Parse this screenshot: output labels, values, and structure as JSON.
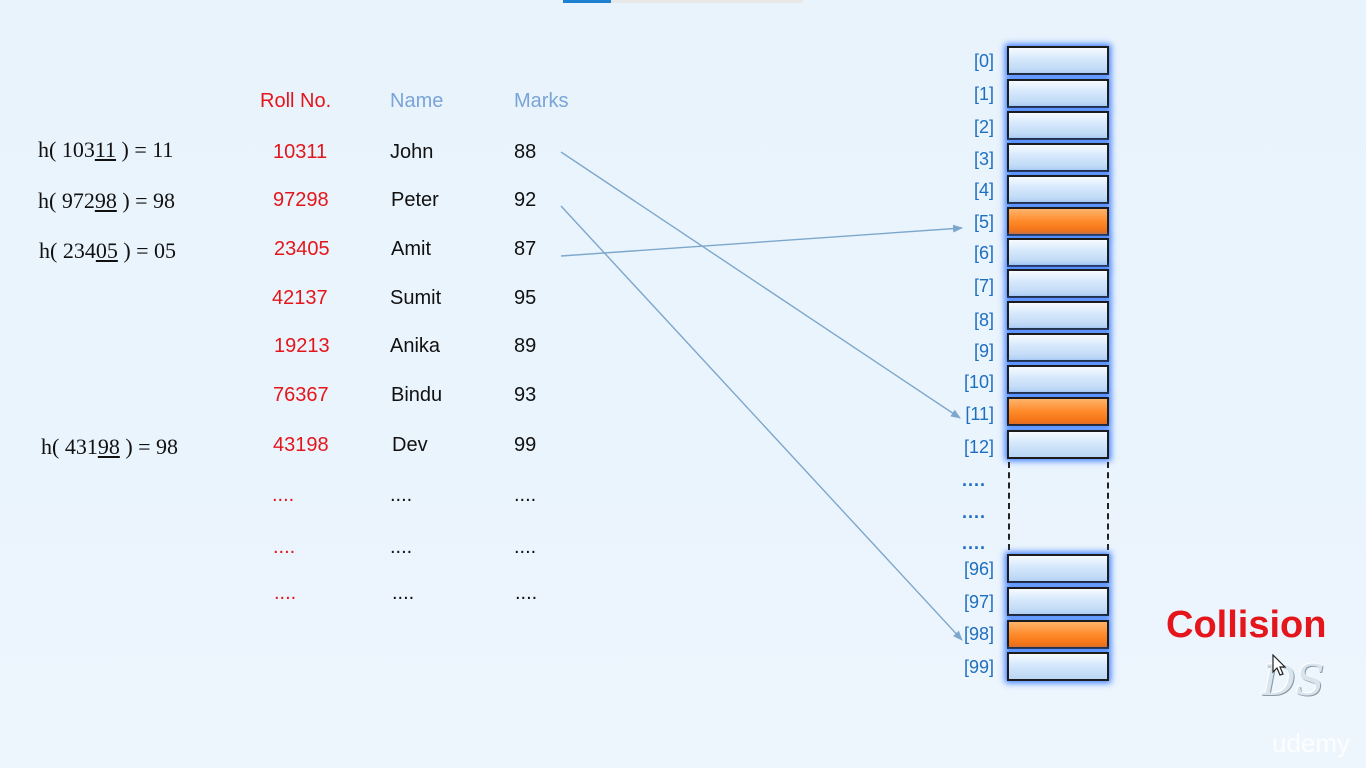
{
  "headers": {
    "roll": "Roll No.",
    "name": "Name",
    "marks": "Marks"
  },
  "rows": [
    {
      "roll": "10311",
      "name": "John",
      "marks": "88"
    },
    {
      "roll": "97298",
      "name": "Peter",
      "marks": "92"
    },
    {
      "roll": "23405",
      "name": "Amit",
      "marks": "87"
    },
    {
      "roll": "42137",
      "name": "Sumit",
      "marks": "95"
    },
    {
      "roll": "19213",
      "name": "Anika",
      "marks": "89"
    },
    {
      "roll": "76367",
      "name": "Bindu",
      "marks": "93"
    },
    {
      "roll": "43198",
      "name": "Dev",
      "marks": "99"
    },
    {
      "roll": "....",
      "name": "....",
      "marks": "...."
    },
    {
      "roll": "....",
      "name": "....",
      "marks": "...."
    },
    {
      "roll": "....",
      "name": "....",
      "marks": "...."
    }
  ],
  "hash_functions": [
    {
      "prefix": "h( 103",
      "underlined": "11",
      "suffix": " ) = 11"
    },
    {
      "prefix": "h( 972",
      "underlined": "98",
      "suffix": " ) = 98"
    },
    {
      "prefix": "h( 234",
      "underlined": "05",
      "suffix": " ) = 05"
    },
    {
      "prefix": "h( 431",
      "underlined": "98",
      "suffix": " ) = 98"
    }
  ],
  "table_slots": [
    {
      "label": "[0]",
      "filled": false
    },
    {
      "label": "[1]",
      "filled": false
    },
    {
      "label": "[2]",
      "filled": false
    },
    {
      "label": "[3]",
      "filled": false
    },
    {
      "label": "[4]",
      "filled": false
    },
    {
      "label": "[5]",
      "filled": true
    },
    {
      "label": "[6]",
      "filled": false
    },
    {
      "label": "[7]",
      "filled": false
    },
    {
      "label": "[8]",
      "filled": false
    },
    {
      "label": "[9]",
      "filled": false
    },
    {
      "label": "[10]",
      "filled": false
    },
    {
      "label": "[11]",
      "filled": true
    },
    {
      "label": "[12]",
      "filled": false
    },
    {
      "label": "[96]",
      "filled": false
    },
    {
      "label": "[97]",
      "filled": false
    },
    {
      "label": "[98]",
      "filled": true
    },
    {
      "label": "[99]",
      "filled": false
    }
  ],
  "index_ellipses": [
    "....",
    "....",
    "...."
  ],
  "mappings": [
    {
      "from_roll": "10311",
      "to_slot": "[11]"
    },
    {
      "from_roll": "97298",
      "to_slot": "[98]"
    },
    {
      "from_roll": "23405",
      "to_slot": "[5]"
    }
  ],
  "collision_label": "Collision",
  "logo_text": "DS",
  "watermark": "udemy",
  "colors": {
    "roll": "#e4161b",
    "header_muted": "#79a4d8",
    "index": "#1f6fbf",
    "filled_slot": "#ff8a2a",
    "empty_slot": "#cfe3f8",
    "arrow": "#7da7cc"
  },
  "icons": {
    "cursor": "mouse-pointer-icon"
  }
}
